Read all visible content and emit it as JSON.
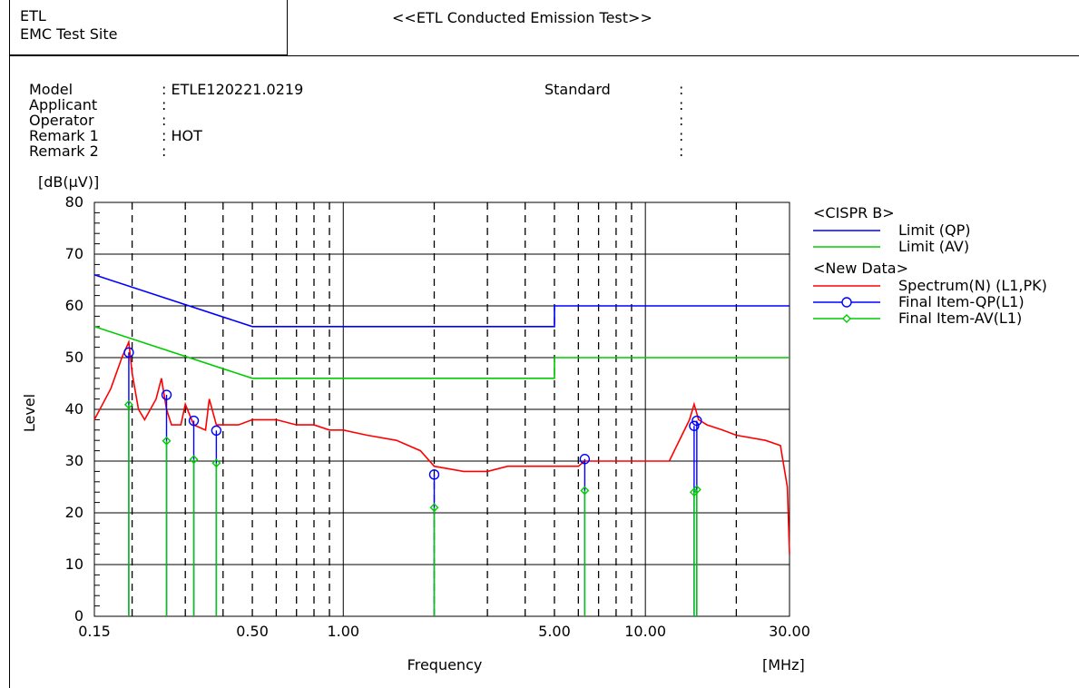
{
  "header": {
    "lab_name": "ETL",
    "lab_site": "EMC Test Site",
    "title": "<<ETL Conducted Emission Test>>"
  },
  "info": {
    "labels": [
      "Model",
      "Applicant",
      "Operator",
      "Remark 1",
      "Remark 2"
    ],
    "values": [
      ": ETLE120221.0219",
      ":",
      ":",
      ": HOT",
      ":"
    ],
    "standard_label": "Standard",
    "standard_colons": [
      ":",
      ":",
      ":",
      ":",
      ":"
    ]
  },
  "chart_data": {
    "type": "line",
    "title": "",
    "xlabel": "Frequency",
    "xunit": "[MHz]",
    "ylabel": "Level",
    "yunit": "[dB(μV)]",
    "x_scale": "log",
    "xlim": [
      0.15,
      30
    ],
    "ylim": [
      0,
      80
    ],
    "x_ticks": [
      0.15,
      0.5,
      1,
      5,
      10,
      30
    ],
    "x_tick_labels": [
      "0.15",
      "0.50",
      "1.00",
      "5.00",
      "10.00",
      "30.00"
    ],
    "y_ticks": [
      0,
      10,
      20,
      30,
      40,
      50,
      60,
      70,
      80
    ],
    "y_tick_labels": [
      "0",
      "10",
      "20",
      "30",
      "40",
      "50",
      "60",
      "70",
      "80"
    ],
    "grid": true,
    "legend_position": "right",
    "legend_groups": [
      "<CISPR B>",
      "<New Data>"
    ],
    "series": [
      {
        "name": "Limit (QP)",
        "group": "<CISPR B>",
        "color": "#0000ff",
        "kind": "line",
        "x": [
          0.15,
          0.5,
          5,
          5,
          30
        ],
        "y": [
          66,
          56,
          56,
          60,
          60
        ]
      },
      {
        "name": "Limit (AV)",
        "group": "<CISPR B>",
        "color": "#00cc00",
        "kind": "line",
        "x": [
          0.15,
          0.5,
          5,
          5,
          30
        ],
        "y": [
          56,
          46,
          46,
          50,
          50
        ]
      },
      {
        "name": "Spectrum(N) (L1,PK)",
        "group": "<New Data>",
        "color": "#ff0000",
        "kind": "line",
        "x": [
          0.15,
          0.17,
          0.185,
          0.195,
          0.2,
          0.21,
          0.22,
          0.24,
          0.25,
          0.26,
          0.27,
          0.29,
          0.3,
          0.32,
          0.35,
          0.36,
          0.38,
          0.4,
          0.45,
          0.5,
          0.6,
          0.7,
          0.8,
          0.9,
          1.0,
          1.2,
          1.5,
          1.8,
          2.0,
          2.5,
          3.0,
          3.5,
          4.0,
          5.0,
          6.0,
          6.3,
          7.0,
          8.0,
          9.0,
          10.0,
          12.0,
          14.0,
          14.5,
          15.0,
          16.0,
          18.0,
          20.0,
          25.0,
          28.0,
          29.5,
          30.0
        ],
        "y": [
          38,
          44,
          50,
          53,
          47,
          40,
          38,
          42,
          46,
          40,
          37,
          37,
          41,
          37,
          36,
          42,
          37,
          37,
          37,
          38,
          38,
          37,
          37,
          36,
          36,
          35,
          34,
          32,
          29,
          28,
          28,
          29,
          29,
          29,
          29,
          30,
          30,
          30,
          30,
          30,
          30,
          38,
          41,
          38,
          37,
          36,
          35,
          34,
          33,
          25,
          12
        ]
      },
      {
        "name": "Final Item-QP(L1)",
        "group": "<New Data>",
        "color": "#0000ff",
        "kind": "marker",
        "marker": "circle",
        "x": [
          0.195,
          0.26,
          0.32,
          0.38,
          2.0,
          6.3,
          14.5,
          14.8
        ],
        "y": [
          51.0,
          42.8,
          37.8,
          35.9,
          27.4,
          30.4,
          36.8,
          37.8
        ]
      },
      {
        "name": "Final Item-AV(L1)",
        "group": "<New Data>",
        "color": "#00cc00",
        "kind": "marker",
        "marker": "diamond",
        "x": [
          0.195,
          0.26,
          0.32,
          0.38,
          2.0,
          6.3,
          14.5,
          14.8
        ],
        "y": [
          40.9,
          33.9,
          30.3,
          29.6,
          21.0,
          24.3,
          24.0,
          24.5
        ]
      }
    ]
  }
}
